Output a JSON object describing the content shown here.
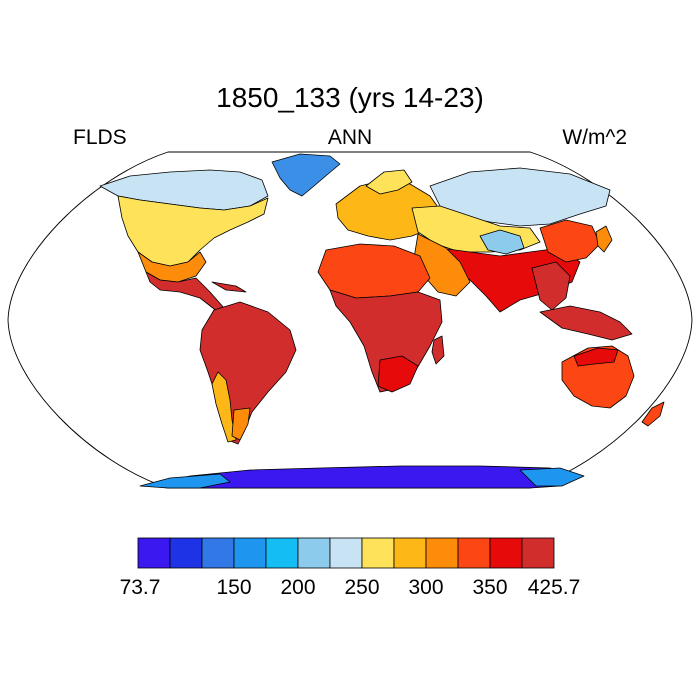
{
  "title": "1850_133 (yrs 14-23)",
  "left_label": "FLDS",
  "center_label": "ANN",
  "right_label": "W/m^2",
  "projection": "Robinson",
  "colorbar": {
    "min_label": "73.7",
    "max_label": "425.7",
    "tick_labels": [
      "150",
      "200",
      "250",
      "300",
      "350"
    ],
    "colors": [
      "#3c18f0",
      "#1e32e6",
      "#3278e6",
      "#1e96f0",
      "#14bef5",
      "#8ccbec",
      "#c8e4f4",
      "#fde25a",
      "#fdb818",
      "#fd8c0a",
      "#fc4614",
      "#e60a0a",
      "#d22d2d"
    ]
  }
}
